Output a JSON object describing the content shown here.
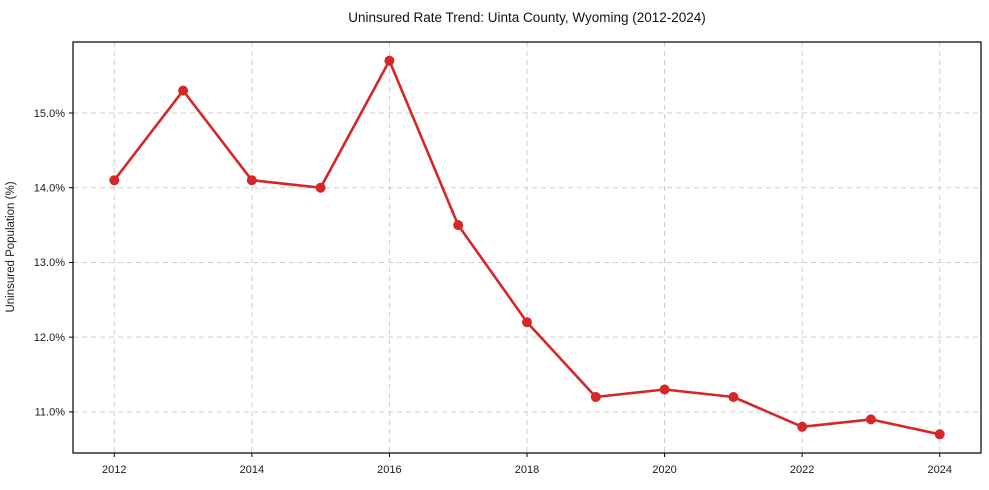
{
  "chart_data": {
    "type": "line",
    "title": "Uninsured Rate Trend: Uinta County, Wyoming (2012-2024)",
    "xlabel": "",
    "ylabel": "Uninsured Population (%)",
    "x": [
      2012,
      2013,
      2014,
      2015,
      2016,
      2017,
      2018,
      2019,
      2020,
      2021,
      2022,
      2023,
      2024
    ],
    "values": [
      14.1,
      15.3,
      14.1,
      14.0,
      15.7,
      13.5,
      12.2,
      11.2,
      11.3,
      11.2,
      10.8,
      10.9,
      10.7
    ],
    "line_color": "#d62728",
    "marker": "circle",
    "marker_radius": 5,
    "xlim": [
      2011.4,
      2024.6
    ],
    "ylim": [
      10.45,
      15.95
    ],
    "x_ticks": [
      2012,
      2014,
      2016,
      2018,
      2020,
      2022,
      2024
    ],
    "x_tick_labels": [
      "2012",
      "2014",
      "2016",
      "2018",
      "2020",
      "2022",
      "2024"
    ],
    "y_ticks": [
      11.0,
      12.0,
      13.0,
      14.0,
      15.0
    ],
    "y_tick_labels": [
      "11.0%",
      "12.0%",
      "13.0%",
      "14.0%",
      "15.0%"
    ],
    "grid": true,
    "legend": false
  }
}
